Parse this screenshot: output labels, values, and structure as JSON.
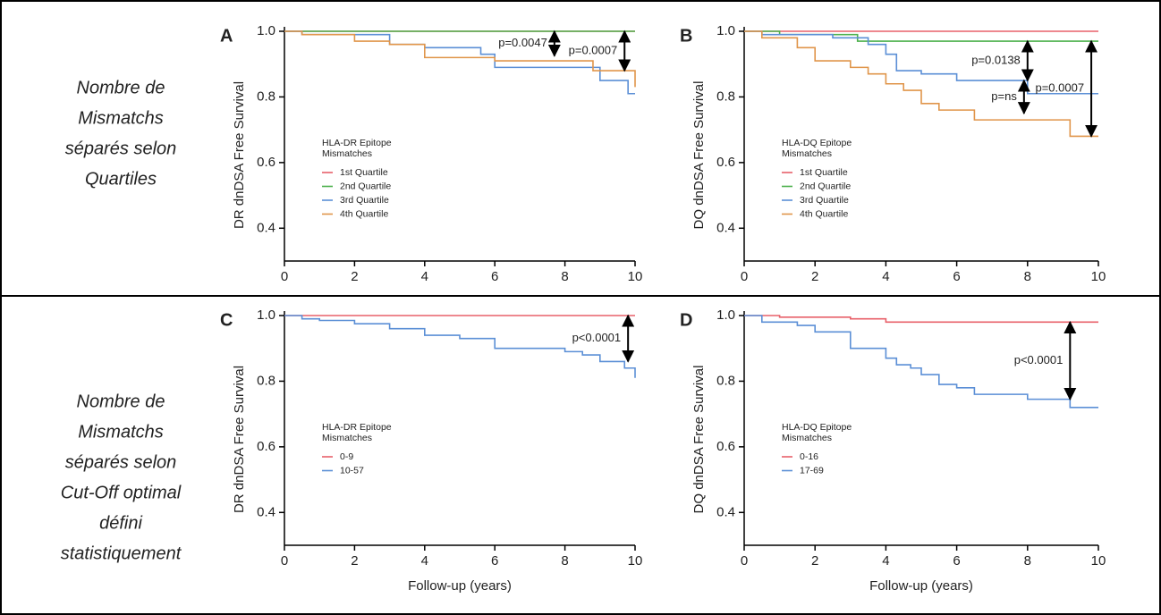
{
  "row_labels": [
    [
      "Nombre de",
      "Mismatchs",
      "séparés selon",
      "Quartiles"
    ],
    [
      "Nombre de",
      "Mismatchs",
      "séparés selon",
      "Cut-Off optimal",
      "défini",
      "statistiquement"
    ]
  ],
  "chart_data": [
    {
      "type": "step",
      "label": "A",
      "ylabel": "DR dnDSA Free Survival",
      "legend_title": [
        "HLA-DR Epitope",
        "Mismatches"
      ],
      "xlim": [
        0,
        10
      ],
      "xticks": [
        0,
        2,
        4,
        6,
        8,
        10
      ],
      "ylim": [
        0.3,
        1.0
      ],
      "yticks": [
        0.4,
        0.6,
        0.8,
        {
          "value": 1.0,
          "label": "1.0"
        }
      ],
      "series": [
        {
          "name": "1st Quartile",
          "color": "#e8606a",
          "x": [
            0,
            10
          ],
          "values": [
            1,
            1
          ]
        },
        {
          "name": "2nd Quartile",
          "color": "#4cb04c",
          "x": [
            0,
            10
          ],
          "values": [
            1,
            1
          ]
        },
        {
          "name": "3rd Quartile",
          "color": "#5b8fd6",
          "x": [
            0,
            0.5,
            3,
            4,
            5.6,
            6,
            9,
            9.8,
            10
          ],
          "values": [
            1,
            0.99,
            0.96,
            0.95,
            0.93,
            0.89,
            0.85,
            0.81,
            0.81
          ]
        },
        {
          "name": "4th Quartile",
          "color": "#e0954a",
          "x": [
            0,
            0.5,
            2,
            3,
            4,
            6,
            8.8,
            10
          ],
          "values": [
            1,
            0.99,
            0.97,
            0.96,
            0.92,
            0.91,
            0.88,
            0.83
          ]
        }
      ],
      "annotations": [
        {
          "text": "p=0.0047",
          "x": 7.7,
          "y1": 1.0,
          "y2": 0.925
        },
        {
          "text": "p=0.0007",
          "x": 9.7,
          "y1": 1.0,
          "y2": 0.88
        }
      ]
    },
    {
      "type": "step",
      "label": "B",
      "ylabel": "DQ dnDSA Free Survival",
      "legend_title": [
        "HLA-DQ Epitope",
        "Mismatches"
      ],
      "xlim": [
        0,
        10
      ],
      "xticks": [
        0,
        2,
        4,
        6,
        8,
        10
      ],
      "ylim": [
        0.3,
        1.0
      ],
      "yticks": [
        0.4,
        0.6,
        0.8,
        {
          "value": 1.0,
          "label": "1.0"
        }
      ],
      "series": [
        {
          "name": "1st Quartile",
          "color": "#e8606a",
          "x": [
            0,
            10
          ],
          "values": [
            1,
            1
          ]
        },
        {
          "name": "2nd Quartile",
          "color": "#4cb04c",
          "x": [
            0,
            1,
            3.2,
            10
          ],
          "values": [
            1,
            0.99,
            0.97,
            0.97
          ]
        },
        {
          "name": "3rd Quartile",
          "color": "#5b8fd6",
          "x": [
            0,
            0.5,
            2.5,
            3.5,
            4,
            4.3,
            5,
            6,
            8,
            10
          ],
          "values": [
            1,
            0.99,
            0.98,
            0.96,
            0.93,
            0.88,
            0.87,
            0.85,
            0.81,
            0.81
          ]
        },
        {
          "name": "4th Quartile",
          "color": "#e0954a",
          "x": [
            0,
            0.5,
            1.5,
            2,
            3,
            3.5,
            4,
            4.5,
            5,
            5.5,
            6.5,
            8,
            9.2,
            10
          ],
          "values": [
            1,
            0.98,
            0.95,
            0.91,
            0.89,
            0.87,
            0.84,
            0.82,
            0.78,
            0.76,
            0.73,
            0.73,
            0.68,
            0.68
          ]
        }
      ],
      "annotations": [
        {
          "text": "p=0.0138",
          "x": 8.0,
          "y1": 0.97,
          "y2": 0.85
        },
        {
          "text": "p=ns",
          "x": 7.9,
          "y1": 0.85,
          "y2": 0.75
        },
        {
          "text": "p=0.0007",
          "x": 9.8,
          "y1": 0.97,
          "y2": 0.68
        }
      ]
    },
    {
      "type": "step",
      "label": "C",
      "ylabel": "DR dnDSA Free Survival",
      "xlabel": "Follow-up (years)",
      "legend_title": [
        "HLA-DR Epitope",
        "Mismatches"
      ],
      "xlim": [
        0,
        10
      ],
      "xticks": [
        0,
        2,
        4,
        6,
        8,
        10
      ],
      "ylim": [
        0.3,
        1.0
      ],
      "yticks": [
        0.4,
        0.6,
        0.8,
        {
          "value": 1.0,
          "label": "1.0"
        }
      ],
      "series": [
        {
          "name": "0-9",
          "color": "#e8606a",
          "x": [
            0,
            10
          ],
          "values": [
            1,
            1
          ]
        },
        {
          "name": "10-57",
          "color": "#5b8fd6",
          "x": [
            0,
            0.5,
            1,
            2,
            3,
            4,
            5,
            6,
            8,
            8.5,
            9,
            9.7,
            10
          ],
          "values": [
            1,
            0.99,
            0.985,
            0.975,
            0.96,
            0.94,
            0.93,
            0.9,
            0.89,
            0.88,
            0.86,
            0.84,
            0.81
          ]
        }
      ],
      "annotations": [
        {
          "text": "p<0.0001",
          "x": 9.8,
          "y1": 1.0,
          "y2": 0.86
        }
      ]
    },
    {
      "type": "step",
      "label": "D",
      "ylabel": "DQ dnDSA Free Survival",
      "xlabel": "Follow-up (years)",
      "legend_title": [
        "HLA-DQ Epitope",
        "Mismatches"
      ],
      "xlim": [
        0,
        10
      ],
      "xticks": [
        0,
        2,
        4,
        6,
        8,
        10
      ],
      "ylim": [
        0.3,
        1.0
      ],
      "yticks": [
        0.4,
        0.6,
        0.8,
        {
          "value": 1.0,
          "label": "1.0"
        }
      ],
      "series": [
        {
          "name": "0-16",
          "color": "#e8606a",
          "x": [
            0,
            1,
            3,
            4,
            10
          ],
          "values": [
            1,
            0.995,
            0.99,
            0.98,
            0.98
          ]
        },
        {
          "name": "17-69",
          "color": "#5b8fd6",
          "x": [
            0,
            0.5,
            1.5,
            2,
            3,
            4,
            4.3,
            4.7,
            5,
            5.5,
            6,
            6.5,
            8,
            9.2,
            10
          ],
          "values": [
            1,
            0.98,
            0.97,
            0.95,
            0.9,
            0.87,
            0.85,
            0.84,
            0.82,
            0.79,
            0.78,
            0.76,
            0.745,
            0.72,
            0.72
          ]
        }
      ],
      "annotations": [
        {
          "text": "p<0.0001",
          "x": 9.2,
          "y1": 0.98,
          "y2": 0.745
        }
      ]
    }
  ]
}
